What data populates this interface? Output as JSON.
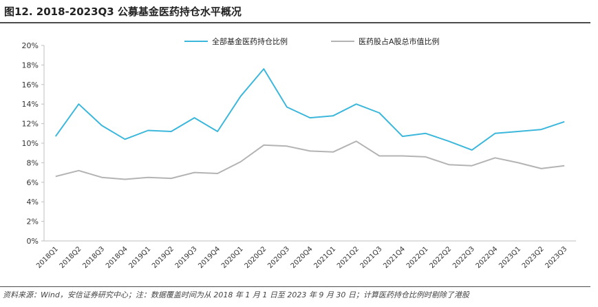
{
  "figure": {
    "title": "图12. 2018-2023Q3 公募基金医药持仓水平概况",
    "source": "资料来源：Wind，安信证券研究中心；注：数据覆盖时间为从 2018 年 1 月 1 日至 2023 年 9 月 30 日；计算医药持仓比例时剔除了港股"
  },
  "chart_data": {
    "type": "line",
    "title": "",
    "xlabel": "",
    "ylabel": "",
    "ylim": [
      0,
      20
    ],
    "y_ticks": [
      "0%",
      "2%",
      "4%",
      "6%",
      "8%",
      "10%",
      "12%",
      "14%",
      "16%",
      "18%",
      "20%"
    ],
    "y_unit": "%",
    "grid": false,
    "legend_position": "top-center",
    "categories": [
      "2018Q1",
      "2018Q2",
      "2018Q3",
      "2018Q4",
      "2019Q1",
      "2019Q2",
      "2019Q3",
      "2019Q4",
      "2020Q1",
      "2020Q2",
      "2020Q3",
      "2020Q4",
      "2021Q1",
      "2021Q2",
      "2021Q3",
      "2021Q4",
      "2022Q1",
      "2022Q2",
      "2022Q3",
      "2022Q4",
      "2023Q1",
      "2023Q2",
      "2023Q3"
    ],
    "series": [
      {
        "name": "全部基金医药持仓比例",
        "color": "#3bb7db",
        "values": [
          10.7,
          14.0,
          11.8,
          10.4,
          11.3,
          11.2,
          12.6,
          11.2,
          14.8,
          17.6,
          13.7,
          12.6,
          12.8,
          14.0,
          13.1,
          10.7,
          11.0,
          10.2,
          9.3,
          11.0,
          11.2,
          11.4,
          12.2
        ]
      },
      {
        "name": "医药股占A股总市值比例",
        "color": "#b3b3b3",
        "values": [
          6.6,
          7.2,
          6.5,
          6.3,
          6.5,
          6.4,
          7.0,
          6.9,
          8.1,
          9.8,
          9.7,
          9.2,
          9.1,
          10.2,
          8.7,
          8.7,
          8.6,
          7.8,
          7.7,
          8.5,
          8.0,
          7.4,
          7.7
        ]
      }
    ]
  }
}
